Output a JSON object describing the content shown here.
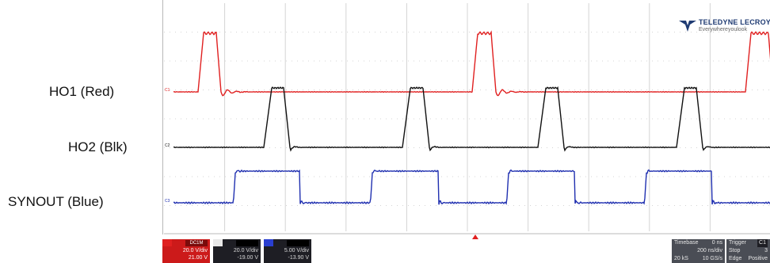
{
  "labels": {
    "ho1": "HO1 (Red)",
    "ho2": "HO2 (Blk)",
    "synout": "SYNOUT (Blue)"
  },
  "brand": {
    "name": "TELEDYNE LECROY",
    "tagline": "Everywhereyoulook"
  },
  "channels": [
    {
      "name": "C1",
      "color": "#e02020",
      "badge": "DC1M",
      "scale": "20.0 V/div",
      "offset": "21.00 V"
    },
    {
      "name": "C2",
      "color": "#111111",
      "scale": "20.0 V/div",
      "offset": "-19.00 V"
    },
    {
      "name": "C3",
      "color": "#2030b0",
      "scale": "5.00 V/div",
      "offset": "-13.90 V"
    }
  ],
  "timebase": {
    "title": "Timebase",
    "delay": "0 ns",
    "scale": "200 ns/div",
    "samples": "20 kS",
    "rate": "10 GS/s"
  },
  "trigger": {
    "title": "Trigger",
    "channel": "C1",
    "mode": "Stop",
    "level": "3",
    "type": "Edge",
    "slope": "Positive"
  },
  "colors": {
    "ch1": "#e02020",
    "ch2": "#111111",
    "ch3": "#2030b0",
    "grid": "#d4d4d4",
    "statusbar": "#1e1e24"
  }
}
